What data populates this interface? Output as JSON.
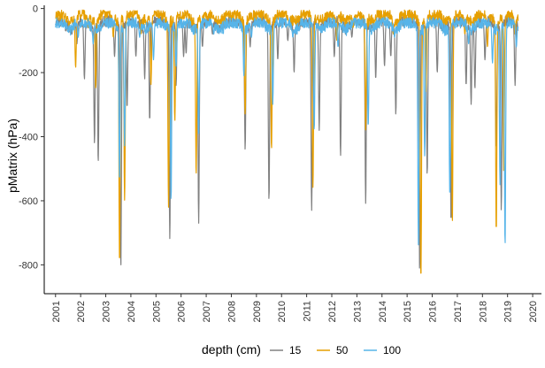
{
  "chart_data": {
    "type": "line",
    "title": "",
    "xlabel": "",
    "ylabel": "pMatrix (hPa)",
    "xlim": [
      2000.55,
      2020.35
    ],
    "ylim": [
      -890,
      10
    ],
    "x_ticks": [
      "2001",
      "2002",
      "2003",
      "2004",
      "2005",
      "2006",
      "2007",
      "2008",
      "2009",
      "2010",
      "2011",
      "2012",
      "2013",
      "2014",
      "2015",
      "2016",
      "2017",
      "2018",
      "2019",
      "2020"
    ],
    "y_ticks": [
      0,
      -200,
      -400,
      -600,
      -800
    ],
    "grid": false,
    "legend": {
      "title": "depth (cm)",
      "position": "bottom"
    },
    "data_end": 2019.42,
    "series": [
      {
        "name": "15",
        "color": "#808080",
        "baseline": -40,
        "dips": [
          [
            2001.65,
            -80
          ],
          [
            2001.85,
            -110
          ],
          [
            2002.15,
            -220
          ],
          [
            2002.3,
            -60
          ],
          [
            2002.55,
            -420
          ],
          [
            2002.7,
            -480
          ],
          [
            2003.35,
            -150
          ],
          [
            2003.6,
            -810
          ],
          [
            2003.85,
            -310
          ],
          [
            2004.2,
            -150
          ],
          [
            2004.55,
            -220
          ],
          [
            2004.75,
            -350
          ],
          [
            2005.55,
            -720
          ],
          [
            2005.8,
            -240
          ],
          [
            2006.1,
            -150
          ],
          [
            2006.2,
            -140
          ],
          [
            2006.7,
            -670
          ],
          [
            2006.85,
            -120
          ],
          [
            2007.25,
            -80
          ],
          [
            2007.55,
            -60
          ],
          [
            2008.55,
            -440
          ],
          [
            2008.75,
            -120
          ],
          [
            2009.5,
            -600
          ],
          [
            2009.85,
            -160
          ],
          [
            2010.25,
            -100
          ],
          [
            2010.5,
            -200
          ],
          [
            2011.2,
            -630
          ],
          [
            2011.5,
            -380
          ],
          [
            2012.1,
            -150
          ],
          [
            2012.35,
            -460
          ],
          [
            2012.8,
            -90
          ],
          [
            2013.35,
            -610
          ],
          [
            2013.75,
            -220
          ],
          [
            2014.1,
            -180
          ],
          [
            2014.35,
            -150
          ],
          [
            2014.55,
            -330
          ],
          [
            2015.5,
            -820
          ],
          [
            2015.8,
            -520
          ],
          [
            2016.2,
            -200
          ],
          [
            2016.75,
            -670
          ],
          [
            2017.35,
            -240
          ],
          [
            2017.55,
            -300
          ],
          [
            2017.7,
            -250
          ],
          [
            2018.1,
            -160
          ],
          [
            2018.55,
            -440
          ],
          [
            2018.75,
            -630
          ],
          [
            2019.3,
            -240
          ]
        ]
      },
      {
        "name": "50",
        "color": "#E69F00",
        "baseline": -20,
        "dips": [
          [
            2001.55,
            -40
          ],
          [
            2001.8,
            -185
          ],
          [
            2002.3,
            -60
          ],
          [
            2002.6,
            -250
          ],
          [
            2003.3,
            -90
          ],
          [
            2003.55,
            -800
          ],
          [
            2003.75,
            -600
          ],
          [
            2004.4,
            -80
          ],
          [
            2004.8,
            -240
          ],
          [
            2005.5,
            -620
          ],
          [
            2005.75,
            -350
          ],
          [
            2006.6,
            -520
          ],
          [
            2006.8,
            -60
          ],
          [
            2007.35,
            -40
          ],
          [
            2008.55,
            -330
          ],
          [
            2009.6,
            -440
          ],
          [
            2010.3,
            -60
          ],
          [
            2011.25,
            -560
          ],
          [
            2012.2,
            -100
          ],
          [
            2012.85,
            -60
          ],
          [
            2013.35,
            -380
          ],
          [
            2014.45,
            -80
          ],
          [
            2015.55,
            -850
          ],
          [
            2015.75,
            -260
          ],
          [
            2016.8,
            -670
          ],
          [
            2017.3,
            -80
          ],
          [
            2018.2,
            -120
          ],
          [
            2018.55,
            -700
          ],
          [
            2018.85,
            -520
          ],
          [
            2019.3,
            -80
          ]
        ]
      },
      {
        "name": "100",
        "color": "#56B4E9",
        "baseline": -45,
        "dips": [
          [
            2001.5,
            -70
          ],
          [
            2001.9,
            -90
          ],
          [
            2002.5,
            -110
          ],
          [
            2002.8,
            -70
          ],
          [
            2003.55,
            -540
          ],
          [
            2003.75,
            -430
          ],
          [
            2004.35,
            -90
          ],
          [
            2004.9,
            -160
          ],
          [
            2005.6,
            -600
          ],
          [
            2005.8,
            -180
          ],
          [
            2006.7,
            -390
          ],
          [
            2007.3,
            -80
          ],
          [
            2008.5,
            -210
          ],
          [
            2008.8,
            -90
          ],
          [
            2009.65,
            -300
          ],
          [
            2010.45,
            -90
          ],
          [
            2011.3,
            -380
          ],
          [
            2012.25,
            -120
          ],
          [
            2013.45,
            -370
          ],
          [
            2014.5,
            -90
          ],
          [
            2015.45,
            -740
          ],
          [
            2015.7,
            -460
          ],
          [
            2016.7,
            -580
          ],
          [
            2017.45,
            -110
          ],
          [
            2018.4,
            -170
          ],
          [
            2018.7,
            -550
          ],
          [
            2018.9,
            -740
          ],
          [
            2019.35,
            -120
          ]
        ]
      }
    ]
  }
}
